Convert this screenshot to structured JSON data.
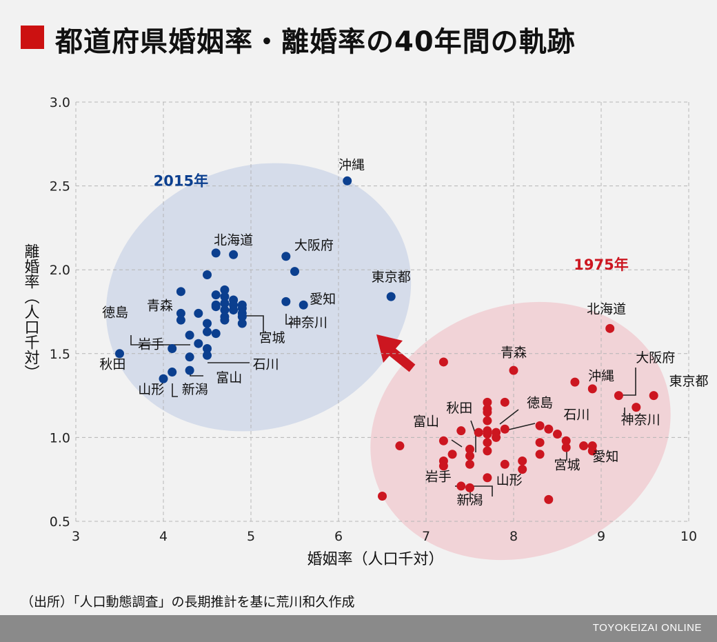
{
  "header": {
    "title": "都道府県婚姻率・離婚率の40年間の軌跡"
  },
  "source": "（出所）「人口動態調査」の長期推計を基に荒川和久作成",
  "footer": {
    "credit": "TOYOKEIZAI ONLINE"
  },
  "colors": {
    "series_2015": "#0b3f8f",
    "series_1975": "#cc1620",
    "ellipse_2015": "#d5dcea",
    "ellipse_1975": "#f1d3d7",
    "accent": "#cc1111"
  },
  "chart_data": {
    "type": "scatter",
    "xlabel": "婚姻率（人口千対）",
    "ylabel": "離婚率（人口千対）",
    "xlim": [
      3,
      10
    ],
    "ylim": [
      0.5,
      3.0
    ],
    "xticks": [
      "3",
      "4",
      "5",
      "6",
      "7",
      "8",
      "9",
      "10"
    ],
    "yticks": [
      "0.5",
      "1.0",
      "1.5",
      "2.0",
      "2.5",
      "3.0"
    ],
    "grid": true,
    "series": [
      {
        "name": "2015年",
        "points": [
          {
            "x": 6.1,
            "y": 2.53
          },
          {
            "x": 5.6,
            "y": 1.79
          },
          {
            "x": 5.5,
            "y": 1.99
          },
          {
            "x": 5.4,
            "y": 2.08
          },
          {
            "x": 5.4,
            "y": 1.81
          },
          {
            "x": 6.6,
            "y": 1.84
          },
          {
            "x": 4.6,
            "y": 2.1
          },
          {
            "x": 4.8,
            "y": 2.09
          },
          {
            "x": 4.5,
            "y": 1.97
          },
          {
            "x": 4.2,
            "y": 1.87
          },
          {
            "x": 4.2,
            "y": 1.74
          },
          {
            "x": 4.2,
            "y": 1.7
          },
          {
            "x": 4.4,
            "y": 1.74
          },
          {
            "x": 4.3,
            "y": 1.61
          },
          {
            "x": 4.1,
            "y": 1.53
          },
          {
            "x": 3.5,
            "y": 1.5
          },
          {
            "x": 4.4,
            "y": 1.56
          },
          {
            "x": 4.5,
            "y": 1.53
          },
          {
            "x": 4.5,
            "y": 1.49
          },
          {
            "x": 4.3,
            "y": 1.48
          },
          {
            "x": 4.3,
            "y": 1.4
          },
          {
            "x": 4.1,
            "y": 1.39
          },
          {
            "x": 4.0,
            "y": 1.35
          },
          {
            "x": 4.5,
            "y": 1.63
          },
          {
            "x": 4.6,
            "y": 1.62
          },
          {
            "x": 4.5,
            "y": 1.68
          },
          {
            "x": 4.6,
            "y": 1.85
          },
          {
            "x": 4.6,
            "y": 1.79
          },
          {
            "x": 4.6,
            "y": 1.78
          },
          {
            "x": 4.7,
            "y": 1.88
          },
          {
            "x": 4.7,
            "y": 1.84
          },
          {
            "x": 4.7,
            "y": 1.8
          },
          {
            "x": 4.7,
            "y": 1.76
          },
          {
            "x": 4.7,
            "y": 1.72
          },
          {
            "x": 4.7,
            "y": 1.7
          },
          {
            "x": 4.8,
            "y": 1.82
          },
          {
            "x": 4.8,
            "y": 1.79
          },
          {
            "x": 4.8,
            "y": 1.76
          },
          {
            "x": 4.9,
            "y": 1.79
          },
          {
            "x": 4.9,
            "y": 1.77
          },
          {
            "x": 4.9,
            "y": 1.74
          },
          {
            "x": 4.9,
            "y": 1.72
          },
          {
            "x": 4.9,
            "y": 1.68
          }
        ]
      },
      {
        "name": "1975年",
        "points": [
          {
            "x": 9.1,
            "y": 1.65
          },
          {
            "x": 9.6,
            "y": 1.25
          },
          {
            "x": 9.4,
            "y": 1.18
          },
          {
            "x": 9.2,
            "y": 1.25
          },
          {
            "x": 8.9,
            "y": 1.29
          },
          {
            "x": 8.0,
            "y": 1.4
          },
          {
            "x": 7.2,
            "y": 1.45
          },
          {
            "x": 8.7,
            "y": 1.33
          },
          {
            "x": 7.7,
            "y": 1.21
          },
          {
            "x": 7.7,
            "y": 1.17
          },
          {
            "x": 7.9,
            "y": 1.21
          },
          {
            "x": 7.7,
            "y": 1.15
          },
          {
            "x": 7.7,
            "y": 1.1
          },
          {
            "x": 7.8,
            "y": 1.03
          },
          {
            "x": 7.7,
            "y": 1.04
          },
          {
            "x": 7.7,
            "y": 1.02
          },
          {
            "x": 7.6,
            "y": 1.03
          },
          {
            "x": 7.4,
            "y": 1.04
          },
          {
            "x": 7.9,
            "y": 1.05
          },
          {
            "x": 8.3,
            "y": 1.07
          },
          {
            "x": 8.4,
            "y": 1.05
          },
          {
            "x": 8.5,
            "y": 1.02
          },
          {
            "x": 8.6,
            "y": 0.98
          },
          {
            "x": 8.6,
            "y": 0.94
          },
          {
            "x": 8.8,
            "y": 0.95
          },
          {
            "x": 8.9,
            "y": 0.95
          },
          {
            "x": 8.9,
            "y": 0.92
          },
          {
            "x": 8.3,
            "y": 0.97
          },
          {
            "x": 8.3,
            "y": 0.9
          },
          {
            "x": 8.1,
            "y": 0.86
          },
          {
            "x": 8.1,
            "y": 0.81
          },
          {
            "x": 7.9,
            "y": 0.84
          },
          {
            "x": 7.7,
            "y": 0.97
          },
          {
            "x": 7.7,
            "y": 0.92
          },
          {
            "x": 7.8,
            "y": 1.0
          },
          {
            "x": 7.5,
            "y": 0.93
          },
          {
            "x": 7.5,
            "y": 0.89
          },
          {
            "x": 7.3,
            "y": 0.9
          },
          {
            "x": 7.2,
            "y": 0.98
          },
          {
            "x": 7.2,
            "y": 0.86
          },
          {
            "x": 7.2,
            "y": 0.83
          },
          {
            "x": 7.5,
            "y": 0.84
          },
          {
            "x": 7.4,
            "y": 0.71
          },
          {
            "x": 7.5,
            "y": 0.7
          },
          {
            "x": 7.7,
            "y": 0.76
          },
          {
            "x": 6.7,
            "y": 0.95
          },
          {
            "x": 6.5,
            "y": 0.65
          },
          {
            "x": 8.4,
            "y": 0.63
          }
        ]
      }
    ],
    "annotations": [
      {
        "text": "2015年",
        "x": 4.2,
        "y": 2.5,
        "color": "series_2015",
        "bold": true,
        "size": 21
      },
      {
        "text": "1975年",
        "x": 9.0,
        "y": 2.0,
        "color": "series_1975",
        "bold": true,
        "size": 21
      },
      {
        "text": "沖縄",
        "x": 6.15,
        "y": 2.6
      },
      {
        "text": "北海道",
        "x": 4.8,
        "y": 2.15
      },
      {
        "text": "大阪府",
        "x": 5.72,
        "y": 2.12
      },
      {
        "text": "東京都",
        "x": 6.6,
        "y": 1.93
      },
      {
        "text": "愛知",
        "x": 5.82,
        "y": 1.8
      },
      {
        "text": "神奈川",
        "x": 5.65,
        "y": 1.66
      },
      {
        "text": "宮城",
        "x": 5.24,
        "y": 1.57
      },
      {
        "text": "石川",
        "x": 5.17,
        "y": 1.41
      },
      {
        "text": "富山",
        "x": 4.75,
        "y": 1.33
      },
      {
        "text": "新潟",
        "x": 4.36,
        "y": 1.26
      },
      {
        "text": "山形",
        "x": 3.86,
        "y": 1.26
      },
      {
        "text": "秋田",
        "x": 3.42,
        "y": 1.41
      },
      {
        "text": "岩手",
        "x": 3.86,
        "y": 1.53
      },
      {
        "text": "徳島",
        "x": 3.45,
        "y": 1.72
      },
      {
        "text": "青森",
        "x": 3.96,
        "y": 1.76
      },
      {
        "text": "北海道",
        "x": 9.06,
        "y": 1.74
      },
      {
        "text": "青森",
        "x": 8.0,
        "y": 1.48
      },
      {
        "text": "沖縄",
        "x": 9.0,
        "y": 1.34
      },
      {
        "text": "大阪府",
        "x": 9.62,
        "y": 1.45
      },
      {
        "text": "東京都",
        "x": 10.0,
        "y": 1.31
      },
      {
        "text": "神奈川",
        "x": 9.45,
        "y": 1.08
      },
      {
        "text": "徳島",
        "x": 8.3,
        "y": 1.18
      },
      {
        "text": "石川",
        "x": 8.72,
        "y": 1.11
      },
      {
        "text": "秋田",
        "x": 7.38,
        "y": 1.15
      },
      {
        "text": "富山",
        "x": 7.0,
        "y": 1.07
      },
      {
        "text": "宮城",
        "x": 8.61,
        "y": 0.81
      },
      {
        "text": "愛知",
        "x": 9.05,
        "y": 0.86
      },
      {
        "text": "岩手",
        "x": 7.14,
        "y": 0.74
      },
      {
        "text": "山形",
        "x": 7.95,
        "y": 0.72
      },
      {
        "text": "新潟",
        "x": 7.5,
        "y": 0.6
      }
    ]
  }
}
